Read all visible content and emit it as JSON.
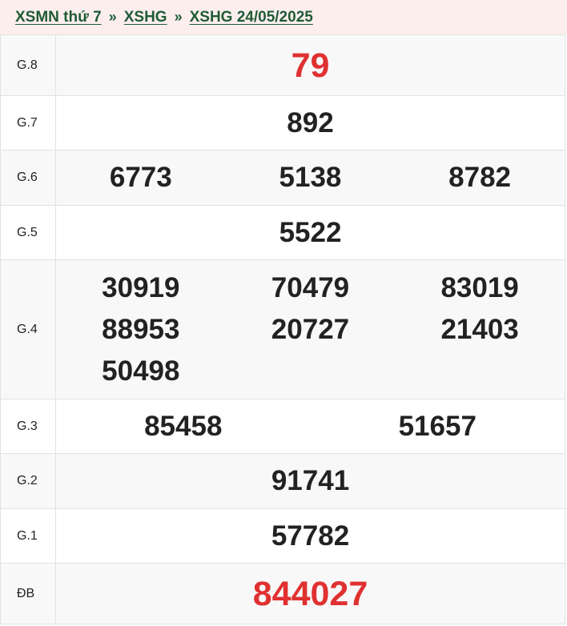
{
  "breadcrumb": [
    "XSMN thứ 7",
    "XSHG",
    "XSHG 24/05/2025"
  ],
  "separator": "»",
  "prizes": [
    {
      "label": "G.8",
      "numbers": [
        "79"
      ],
      "highlight": true,
      "cols": 1,
      "h": 76
    },
    {
      "label": "G.7",
      "numbers": [
        "892"
      ],
      "cols": 1,
      "h": 68
    },
    {
      "label": "G.6",
      "numbers": [
        "6773",
        "5138",
        "8782"
      ],
      "cols": 3,
      "h": 69
    },
    {
      "label": "G.5",
      "numbers": [
        "5522"
      ],
      "cols": 1,
      "h": 68
    },
    {
      "label": "G.4",
      "numbers": [
        "30919",
        "70479",
        "83019",
        "88953",
        "20727",
        "21403",
        "50498"
      ],
      "cols": 3,
      "h": 174
    },
    {
      "label": "G.3",
      "numbers": [
        "85458",
        "51657"
      ],
      "cols": 2,
      "h": 68
    },
    {
      "label": "G.2",
      "numbers": [
        "91741"
      ],
      "cols": 1,
      "h": 69
    },
    {
      "label": "G.1",
      "numbers": [
        "57782"
      ],
      "cols": 1,
      "h": 68
    },
    {
      "label": "ĐB",
      "numbers": [
        "844027"
      ],
      "highlight": true,
      "cols": 1,
      "h": 76
    }
  ],
  "colors": {
    "link": "#1f5c36",
    "highlight": "#e03131",
    "header_bg": "#fdeeee"
  }
}
